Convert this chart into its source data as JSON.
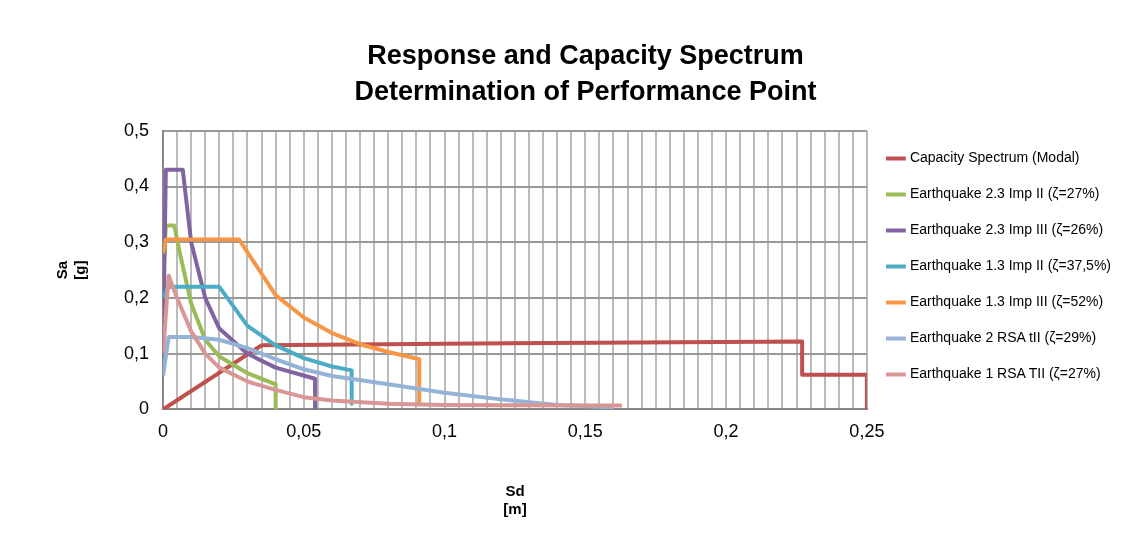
{
  "chart_data": {
    "type": "line",
    "title": "Response and Capacity Spectrum",
    "subtitle": "Determination of Performance Point",
    "xlabel": "Sd\n[m]",
    "ylabel": "Sa\n[g]",
    "xlim": [
      0,
      0.25
    ],
    "ylim": [
      0,
      0.5
    ],
    "xticks": [
      {
        "value": 0,
        "label": "0"
      },
      {
        "value": 0.005,
        "label": null
      },
      {
        "value": 0.01,
        "label": null
      },
      {
        "value": 0.015,
        "label": null
      },
      {
        "value": 0.02,
        "label": null
      },
      {
        "value": 0.025,
        "label": null
      },
      {
        "value": 0.03,
        "label": null
      },
      {
        "value": 0.035,
        "label": null
      },
      {
        "value": 0.04,
        "label": null
      },
      {
        "value": 0.045,
        "label": null
      },
      {
        "value": 0.05,
        "label": "0,05"
      },
      {
        "value": 0.055,
        "label": null
      },
      {
        "value": 0.06,
        "label": null
      },
      {
        "value": 0.065,
        "label": null
      },
      {
        "value": 0.07,
        "label": null
      },
      {
        "value": 0.075,
        "label": null
      },
      {
        "value": 0.08,
        "label": null
      },
      {
        "value": 0.085,
        "label": null
      },
      {
        "value": 0.09,
        "label": null
      },
      {
        "value": 0.095,
        "label": null
      },
      {
        "value": 0.1,
        "label": "0,1"
      },
      {
        "value": 0.105,
        "label": null
      },
      {
        "value": 0.11,
        "label": null
      },
      {
        "value": 0.115,
        "label": null
      },
      {
        "value": 0.12,
        "label": null
      },
      {
        "value": 0.125,
        "label": null
      },
      {
        "value": 0.13,
        "label": null
      },
      {
        "value": 0.135,
        "label": null
      },
      {
        "value": 0.14,
        "label": null
      },
      {
        "value": 0.145,
        "label": null
      },
      {
        "value": 0.15,
        "label": "0,15"
      },
      {
        "value": 0.155,
        "label": null
      },
      {
        "value": 0.16,
        "label": null
      },
      {
        "value": 0.165,
        "label": null
      },
      {
        "value": 0.17,
        "label": null
      },
      {
        "value": 0.175,
        "label": null
      },
      {
        "value": 0.18,
        "label": null
      },
      {
        "value": 0.185,
        "label": null
      },
      {
        "value": 0.19,
        "label": null
      },
      {
        "value": 0.195,
        "label": null
      },
      {
        "value": 0.2,
        "label": "0,2"
      },
      {
        "value": 0.205,
        "label": null
      },
      {
        "value": 0.21,
        "label": null
      },
      {
        "value": 0.215,
        "label": null
      },
      {
        "value": 0.22,
        "label": null
      },
      {
        "value": 0.225,
        "label": null
      },
      {
        "value": 0.23,
        "label": null
      },
      {
        "value": 0.235,
        "label": null
      },
      {
        "value": 0.24,
        "label": null
      },
      {
        "value": 0.245,
        "label": null
      },
      {
        "value": 0.25,
        "label": "0,25"
      }
    ],
    "yticks": [
      {
        "value": 0,
        "label": "0"
      },
      {
        "value": 0.1,
        "label": "0,1"
      },
      {
        "value": 0.2,
        "label": "0,2"
      },
      {
        "value": 0.3,
        "label": "0,3"
      },
      {
        "value": 0.4,
        "label": "0,4"
      },
      {
        "value": 0.5,
        "label": "0,5"
      }
    ],
    "grid": true,
    "legend": "right",
    "marker": "none",
    "line_style": "solid",
    "series": [
      {
        "name": "Capacity Spectrum (Modal)",
        "color": "#c0504d",
        "x": [
          0,
          0.035,
          0.1,
          0.227,
          0.227,
          0.25,
          0.25
        ],
        "values": [
          0,
          0.115,
          0.118,
          0.122,
          0.062,
          0.062,
          0
        ]
      },
      {
        "name": "Earthquake 2.3 Imp II (ζ=27%)",
        "color": "#9bbb59",
        "x": [
          0,
          0.001,
          0.004,
          0.006,
          0.01,
          0.015,
          0.02,
          0.03,
          0.04,
          0.04
        ],
        "values": [
          0.23,
          0.33,
          0.33,
          0.28,
          0.19,
          0.125,
          0.095,
          0.065,
          0.045,
          0
        ]
      },
      {
        "name": "Earthquake 2.3 Imp III (ζ=26%)",
        "color": "#8064a2",
        "x": [
          0,
          0.001,
          0.007,
          0.01,
          0.015,
          0.02,
          0.03,
          0.04,
          0.054,
          0.054
        ],
        "values": [
          0.1,
          0.43,
          0.43,
          0.3,
          0.2,
          0.145,
          0.1,
          0.075,
          0.055,
          0
        ]
      },
      {
        "name": "Earthquake 1.3 Imp II (ζ=37,5%)",
        "color": "#4bacc6",
        "x": [
          0,
          0.002,
          0.02,
          0.03,
          0.04,
          0.05,
          0.06,
          0.067,
          0.067
        ],
        "values": [
          0.2,
          0.22,
          0.22,
          0.15,
          0.115,
          0.092,
          0.077,
          0.07,
          0.01
        ]
      },
      {
        "name": "Earthquake 1.3 Imp III (ζ=52%)",
        "color": "#f79646",
        "x": [
          0,
          0.001,
          0.027,
          0.04,
          0.05,
          0.06,
          0.07,
          0.08,
          0.091,
          0.091
        ],
        "values": [
          0.28,
          0.305,
          0.305,
          0.205,
          0.165,
          0.137,
          0.117,
          0.103,
          0.09,
          0.01
        ]
      },
      {
        "name": "Earthquake 2 RSA tII (ζ=29%)",
        "color": "#95b3d7",
        "x": [
          0,
          0.002,
          0.01,
          0.02,
          0.03,
          0.04,
          0.05,
          0.06,
          0.08,
          0.1,
          0.12,
          0.14,
          0.16
        ],
        "values": [
          0.06,
          0.13,
          0.13,
          0.125,
          0.11,
          0.09,
          0.072,
          0.06,
          0.045,
          0.03,
          0.018,
          0.008,
          0.004
        ]
      },
      {
        "name": "Earthquake 1 RSA TII (ζ=27%)",
        "color": "#d99694",
        "x": [
          0,
          0.002,
          0.005,
          0.01,
          0.015,
          0.02,
          0.03,
          0.04,
          0.05,
          0.06,
          0.08,
          0.1,
          0.163
        ],
        "values": [
          0.1,
          0.24,
          0.2,
          0.14,
          0.1,
          0.075,
          0.05,
          0.035,
          0.022,
          0.016,
          0.01,
          0.008,
          0.007
        ]
      }
    ]
  }
}
